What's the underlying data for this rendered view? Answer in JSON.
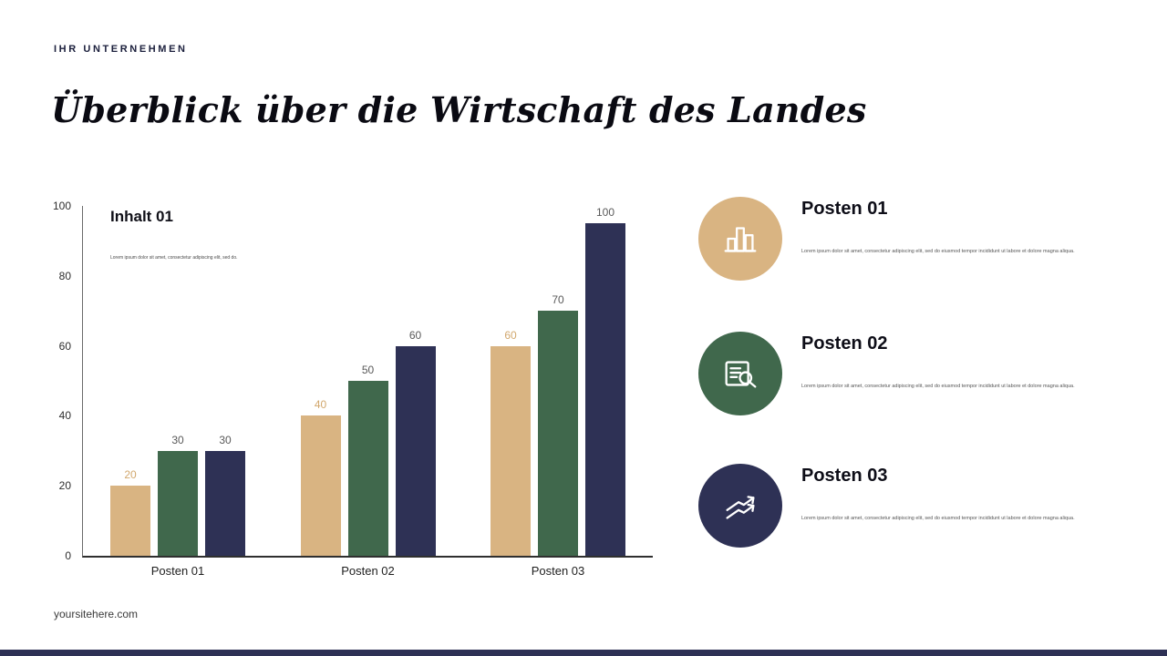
{
  "header": {
    "company": "IHR UNTERNEHMEN",
    "title": "Überblick über die Wirtschaft des Landes"
  },
  "chart": {
    "heading": "Inhalt 01",
    "subtext": "Lorem ipsum dolor sit amet, consectetur adipiscing elit, sed do."
  },
  "chart_data": {
    "type": "bar",
    "title": "Inhalt 01",
    "categories": [
      "Posten 01",
      "Posten 02",
      "Posten 03"
    ],
    "series": [
      {
        "name": "tan",
        "color": "#D9B482",
        "label_color": "#D2A86E",
        "values": [
          20,
          40,
          60
        ]
      },
      {
        "name": "green",
        "color": "#40684C",
        "label_color": "#595959",
        "values": [
          30,
          50,
          70
        ]
      },
      {
        "name": "navy",
        "color": "#2E3155",
        "label_color": "#595959",
        "values": [
          30,
          60,
          100
        ]
      }
    ],
    "ylim": [
      0,
      100
    ],
    "yticks": [
      0,
      20,
      40,
      60,
      80,
      100
    ],
    "grid": false,
    "legend": "none"
  },
  "items": [
    {
      "label": "Posten 01",
      "icon": "bar-chart-icon",
      "color": "#D9B482",
      "text": "Lorem ipsum dolor sit amet, consectetur adipiscing elit, sed do eiusmod tempor incididunt ut labore et dolore magna aliqua."
    },
    {
      "label": "Posten 02",
      "icon": "report-search-icon",
      "color": "#40684C",
      "text": "Lorem ipsum dolor sit amet, consectetur adipiscing elit, sed do eiusmod tempor incididunt ut labore et dolore magna aliqua."
    },
    {
      "label": "Posten 03",
      "icon": "growth-arrows-icon",
      "color": "#2E3155",
      "text": "Lorem ipsum dolor sit amet, consectetur adipiscing elit, sed do eiusmod tempor incididunt ut labore et dolore magna aliqua."
    }
  ],
  "footer": {
    "website": "yoursitehere.com",
    "bar_color": "#2E3155"
  }
}
